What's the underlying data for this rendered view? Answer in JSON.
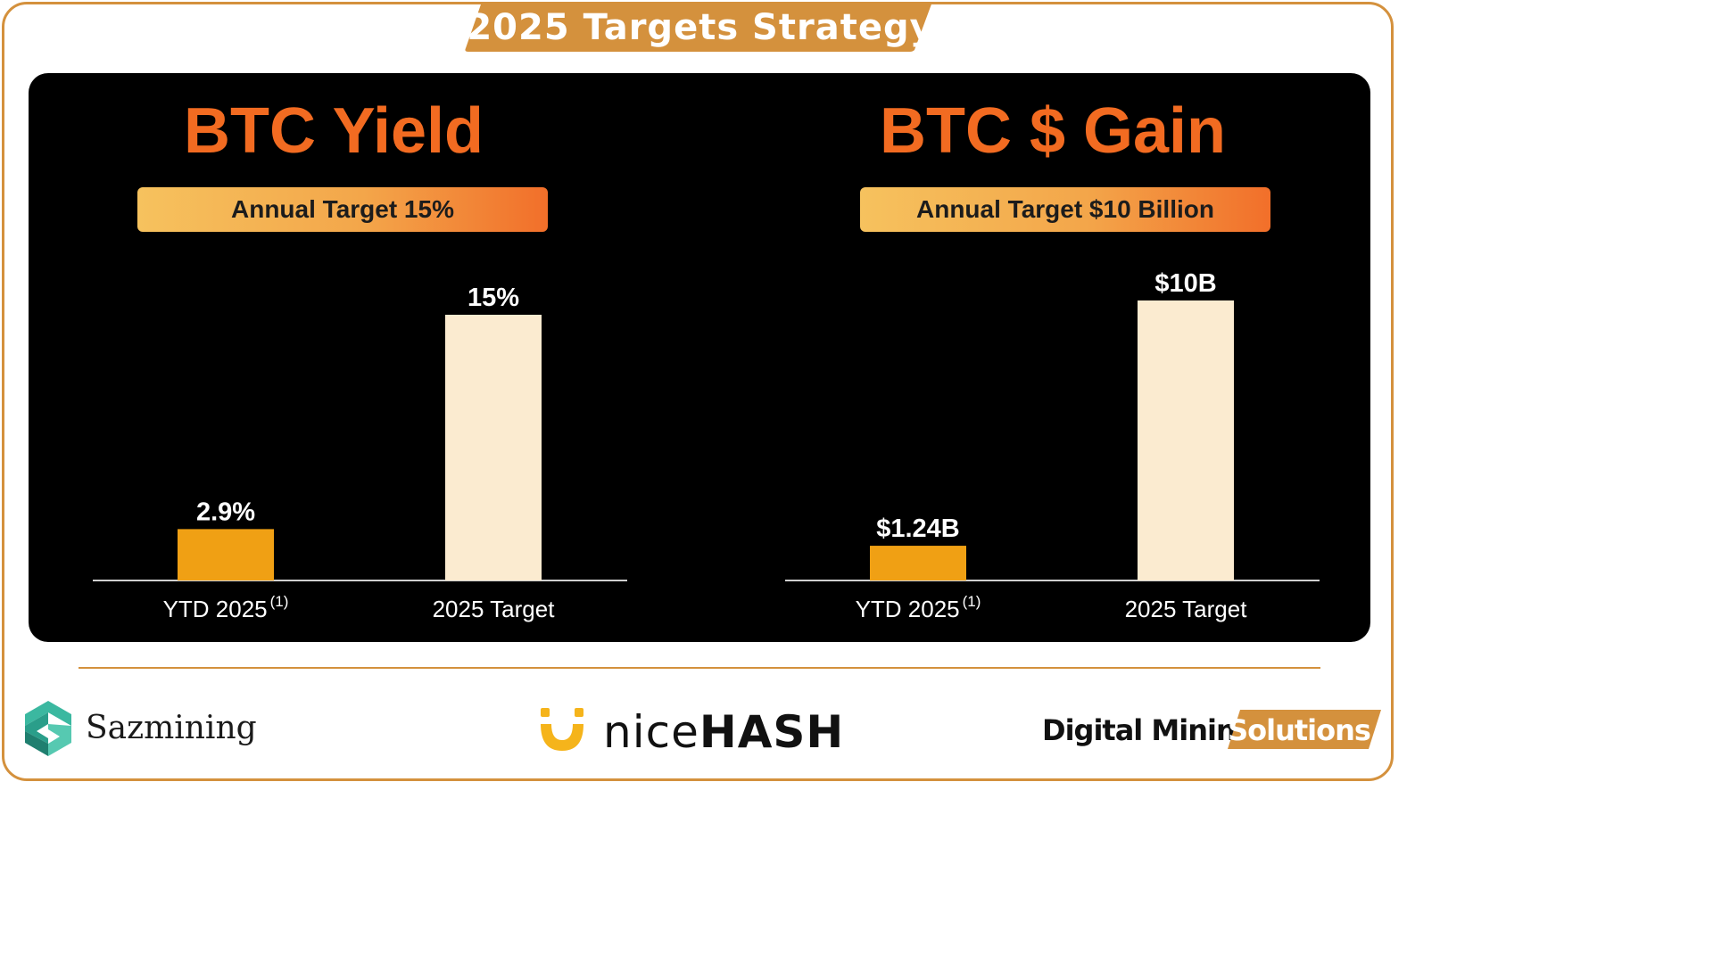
{
  "header": {
    "title": "2025 Targets Strategy"
  },
  "colors": {
    "accent": "#d4913d",
    "title_orange": "#f26b21",
    "bar_ytd": "#f0a014",
    "bar_target": "#fbebd0"
  },
  "chart_data": [
    {
      "type": "bar",
      "title": "BTC Yield",
      "subtitle": "Annual Target 15%",
      "categories": [
        "YTD 2025",
        "2025 Target"
      ],
      "category_superscripts": [
        "(1)",
        ""
      ],
      "values": [
        2.9,
        15
      ],
      "data_labels": [
        "2.9%",
        "15%"
      ],
      "unit": "%",
      "xlabel": "",
      "ylabel": "",
      "ylim": [
        0,
        15
      ],
      "grid": false
    },
    {
      "type": "bar",
      "title": "BTC $ Gain",
      "subtitle": "Annual Target $10 Billion",
      "categories": [
        "YTD 2025",
        "2025 Target"
      ],
      "category_superscripts": [
        "(1)",
        ""
      ],
      "values": [
        1.24,
        10
      ],
      "data_labels": [
        "$1.24B",
        "$10B"
      ],
      "unit": "$B",
      "xlabel": "",
      "ylabel": "",
      "ylim": [
        0,
        10
      ],
      "grid": false
    }
  ],
  "footer": {
    "logos": [
      {
        "name": "Sazmining",
        "icon": "sazmining-logo-icon"
      },
      {
        "name_thin": "nice",
        "name_bold": "HASH",
        "icon": "nicehash-logo-icon"
      },
      {
        "name": "Digital Mining",
        "badge": "Solutions"
      }
    ]
  }
}
